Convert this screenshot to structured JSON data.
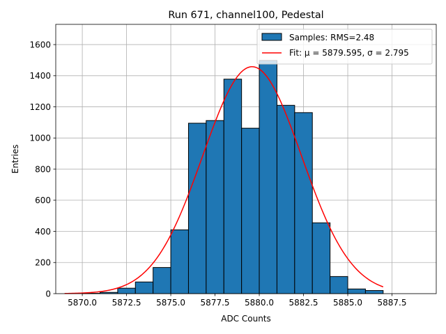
{
  "chart_data": {
    "type": "bar",
    "title": "Run 671, channel100, Pedestal",
    "xlabel": "ADC Counts",
    "ylabel": "Entries",
    "xlim": [
      5868.5,
      5890.0
    ],
    "ylim": [
      0,
      1730
    ],
    "xticks": [
      5870.0,
      5872.5,
      5875.0,
      5877.5,
      5880.0,
      5882.5,
      5885.0,
      5887.5
    ],
    "xtick_labels": [
      "5870.0",
      "5872.5",
      "5875.0",
      "5877.5",
      "5880.0",
      "5882.5",
      "5885.0",
      "5887.5"
    ],
    "yticks": [
      0,
      200,
      400,
      600,
      800,
      1000,
      1200,
      1400,
      1600
    ],
    "ytick_labels": [
      "0",
      "200",
      "400",
      "600",
      "800",
      "1000",
      "1200",
      "1400",
      "1600"
    ],
    "grid": true,
    "legend_position": "top-right",
    "histogram": {
      "name": "Samples: RMS=2.48",
      "color": "#1f77b4",
      "edge_color": "#000000",
      "bin_edges": [
        5870.0,
        5871.0,
        5872.0,
        5873.0,
        5874.0,
        5875.0,
        5876.0,
        5877.0,
        5878.0,
        5879.0,
        5880.0,
        5881.0,
        5882.0,
        5883.0,
        5884.0,
        5885.0,
        5886.0,
        5887.0
      ],
      "values": [
        2,
        8,
        35,
        75,
        168,
        410,
        1095,
        1112,
        1378,
        1063,
        1498,
        1210,
        1163,
        455,
        110,
        30,
        20
      ]
    },
    "fit": {
      "name": "Fit: μ = 5879.595, σ = 2.795",
      "color": "#ff0000",
      "mu": 5879.595,
      "sigma": 2.795,
      "amplitude": 1458,
      "x_range": [
        5869.0,
        5887.0
      ]
    }
  }
}
